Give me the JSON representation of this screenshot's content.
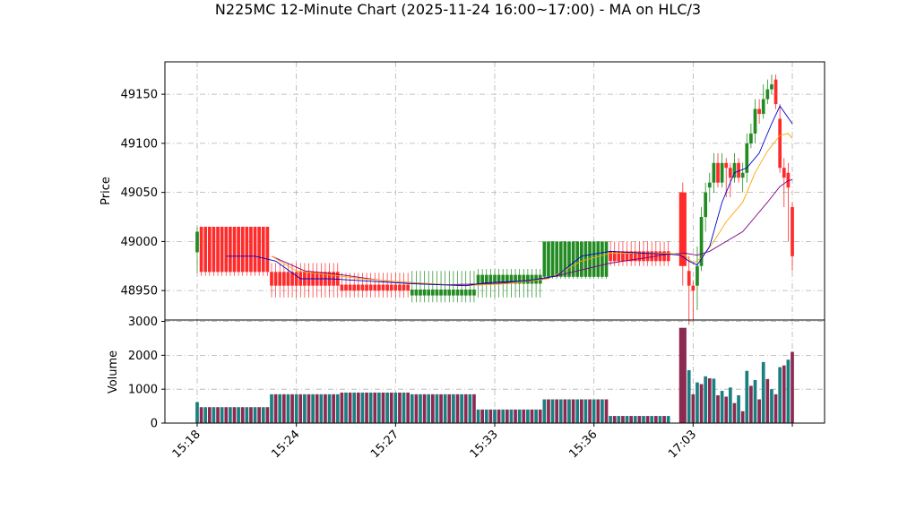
{
  "chart_data": {
    "type": "candlestick",
    "title": "N225MC 12-Minute Chart (2025-11-24 16:00~17:00) - MA on HLC/3",
    "price_panel": {
      "ylabel": "Price",
      "ylim": [
        48920,
        49183
      ],
      "yticks": [
        48950,
        49000,
        49050,
        49100,
        49150
      ],
      "grid": true
    },
    "volume_panel": {
      "ylabel": "Volume",
      "ylim": [
        0,
        3040
      ],
      "yticks": [
        0,
        1000,
        2000,
        3000
      ],
      "grid": true
    },
    "xticks": [
      {
        "label": "15:18",
        "index": 0
      },
      {
        "label": "15:24",
        "index": 24
      },
      {
        "label": "15:27",
        "index": 48
      },
      {
        "label": "15:33",
        "index": 72
      },
      {
        "label": "15:36",
        "index": 96
      },
      {
        "label": "17:03",
        "index": 120
      },
      {
        "label": "",
        "index": 144
      }
    ],
    "n_bars": 145,
    "colors": {
      "up": "#228b22",
      "down": "#ff2a2a",
      "ma_fast": "#0000cc",
      "ma_mid": "#ffa500",
      "ma_slow": "#800080",
      "vol_a": "#1a7f80",
      "vol_b": "#8c2a52",
      "grid": "#b0b0b0"
    },
    "segments": [
      {
        "start": 0,
        "end": 1,
        "open": 48989,
        "close": 49010,
        "high": 49015,
        "low": 48968,
        "up": true,
        "volume": 620
      },
      {
        "start": 1,
        "end": 18,
        "open": 49015,
        "close": 48969,
        "high": 49015,
        "low": 48965,
        "up": false,
        "volume": 470
      },
      {
        "start": 18,
        "end": 35,
        "open": 48969,
        "close": 48955,
        "high": 48978,
        "low": 48943,
        "up": false,
        "volume": 850
      },
      {
        "start": 35,
        "end": 52,
        "open": 48956,
        "close": 48950,
        "high": 48968,
        "low": 48943,
        "up": false,
        "volume": 900
      },
      {
        "start": 52,
        "end": 68,
        "open": 48945,
        "close": 48951,
        "high": 48970,
        "low": 48938,
        "up": true,
        "volume": 850
      },
      {
        "start": 68,
        "end": 84,
        "open": 48957,
        "close": 48966,
        "high": 48972,
        "low": 48943,
        "up": true,
        "volume": 400
      },
      {
        "start": 84,
        "end": 100,
        "open": 48964,
        "close": 49000,
        "high": 49000,
        "low": 48962,
        "up": true,
        "volume": 700
      },
      {
        "start": 100,
        "end": 115,
        "open": 48990,
        "close": 48980,
        "high": 49000,
        "low": 48975,
        "up": false,
        "volume": 210
      }
    ],
    "tail_bars": [
      {
        "i": 117.5,
        "o": 49050,
        "c": 48975,
        "h": 49060,
        "l": 48955,
        "v": 2810
      },
      {
        "i": 119,
        "o": 48970,
        "c": 48955,
        "h": 48985,
        "l": 48915,
        "v": 1560
      },
      {
        "i": 120,
        "o": 48955,
        "c": 48950,
        "h": 48960,
        "l": 48920,
        "v": 850
      },
      {
        "i": 121,
        "o": 48955,
        "c": 48975,
        "h": 48995,
        "l": 48930,
        "v": 1200
      },
      {
        "i": 122,
        "o": 48975,
        "c": 49025,
        "h": 49035,
        "l": 48970,
        "v": 1150
      },
      {
        "i": 123,
        "o": 49025,
        "c": 49050,
        "h": 49060,
        "l": 49010,
        "v": 1380
      },
      {
        "i": 124,
        "o": 49055,
        "c": 49060,
        "h": 49070,
        "l": 49040,
        "v": 1320
      },
      {
        "i": 125,
        "o": 49060,
        "c": 49080,
        "h": 49090,
        "l": 49050,
        "v": 1310
      },
      {
        "i": 126,
        "o": 49080,
        "c": 49060,
        "h": 49090,
        "l": 49055,
        "v": 820
      },
      {
        "i": 127,
        "o": 49060,
        "c": 49080,
        "h": 49090,
        "l": 49055,
        "v": 950
      },
      {
        "i": 128,
        "o": 49080,
        "c": 49075,
        "h": 49085,
        "l": 49045,
        "v": 780
      },
      {
        "i": 129,
        "o": 49075,
        "c": 49065,
        "h": 49080,
        "l": 49045,
        "v": 1050
      },
      {
        "i": 130,
        "o": 49065,
        "c": 49080,
        "h": 49090,
        "l": 49060,
        "v": 590
      },
      {
        "i": 131,
        "o": 49080,
        "c": 49065,
        "h": 49085,
        "l": 49060,
        "v": 820
      },
      {
        "i": 132,
        "o": 49065,
        "c": 49070,
        "h": 49080,
        "l": 49050,
        "v": 350
      },
      {
        "i": 133,
        "o": 49070,
        "c": 49100,
        "h": 49110,
        "l": 49060,
        "v": 1540
      },
      {
        "i": 134,
        "o": 49100,
        "c": 49110,
        "h": 49120,
        "l": 49095,
        "v": 1100
      },
      {
        "i": 135,
        "o": 49110,
        "c": 49135,
        "h": 49145,
        "l": 49100,
        "v": 1270
      },
      {
        "i": 136,
        "o": 49135,
        "c": 49130,
        "h": 49145,
        "l": 49120,
        "v": 700
      },
      {
        "i": 137,
        "o": 49130,
        "c": 49145,
        "h": 49160,
        "l": 49125,
        "v": 1800
      },
      {
        "i": 138,
        "o": 49145,
        "c": 49155,
        "h": 49165,
        "l": 49140,
        "v": 1300
      },
      {
        "i": 139,
        "o": 49155,
        "c": 49160,
        "h": 49170,
        "l": 49150,
        "v": 1000
      },
      {
        "i": 140,
        "o": 49165,
        "c": 49140,
        "h": 49170,
        "l": 49135,
        "v": 850
      },
      {
        "i": 141,
        "o": 49125,
        "c": 49075,
        "h": 49140,
        "l": 49070,
        "v": 1650
      },
      {
        "i": 142,
        "o": 49075,
        "c": 49065,
        "h": 49085,
        "l": 49035,
        "v": 1700
      },
      {
        "i": 143,
        "o": 49070,
        "c": 49055,
        "h": 49080,
        "l": 49000,
        "v": 1870
      },
      {
        "i": 144,
        "o": 49035,
        "c": 48985,
        "h": 49040,
        "l": 48970,
        "v": 2100
      }
    ],
    "ma_fast": [
      [
        7,
        48985
      ],
      [
        14,
        48985
      ],
      [
        19,
        48980
      ],
      [
        25,
        48962
      ],
      [
        32,
        48962
      ],
      [
        40,
        48960
      ],
      [
        52,
        48957
      ],
      [
        65,
        48955
      ],
      [
        70,
        48958
      ],
      [
        80,
        48960
      ],
      [
        87,
        48965
      ],
      [
        93,
        48985
      ],
      [
        100,
        48990
      ],
      [
        108,
        48988
      ],
      [
        114,
        48987
      ],
      [
        117,
        48986
      ],
      [
        119,
        48980
      ],
      [
        121,
        48976
      ],
      [
        124,
        48995
      ],
      [
        127,
        49040
      ],
      [
        130,
        49070
      ],
      [
        133,
        49075
      ],
      [
        136,
        49090
      ],
      [
        139,
        49120
      ],
      [
        141,
        49138
      ],
      [
        144,
        49120
      ]
    ],
    "ma_mid": [
      [
        18,
        48985
      ],
      [
        24,
        48970
      ],
      [
        32,
        48966
      ],
      [
        40,
        48962
      ],
      [
        52,
        48958
      ],
      [
        65,
        48955
      ],
      [
        75,
        48957
      ],
      [
        85,
        48962
      ],
      [
        93,
        48980
      ],
      [
        100,
        48988
      ],
      [
        108,
        48988
      ],
      [
        114,
        48988
      ],
      [
        118,
        48986
      ],
      [
        120,
        48978
      ],
      [
        122,
        48983
      ],
      [
        125,
        49000
      ],
      [
        128,
        49020
      ],
      [
        132,
        49040
      ],
      [
        135,
        49070
      ],
      [
        138,
        49092
      ],
      [
        141,
        49108
      ],
      [
        143,
        49110
      ],
      [
        144,
        49105
      ]
    ],
    "ma_slow": [
      [
        18,
        48985
      ],
      [
        26,
        48970
      ],
      [
        35,
        48966
      ],
      [
        45,
        48960
      ],
      [
        60,
        48956
      ],
      [
        72,
        48957
      ],
      [
        84,
        48962
      ],
      [
        92,
        48970
      ],
      [
        100,
        48978
      ],
      [
        108,
        48983
      ],
      [
        114,
        48987
      ],
      [
        118,
        48988
      ],
      [
        121,
        48986
      ],
      [
        124,
        48990
      ],
      [
        128,
        49000
      ],
      [
        132,
        49010
      ],
      [
        135,
        49025
      ],
      [
        138,
        49040
      ],
      [
        141,
        49056
      ],
      [
        143,
        49062
      ],
      [
        144,
        49063
      ]
    ]
  }
}
